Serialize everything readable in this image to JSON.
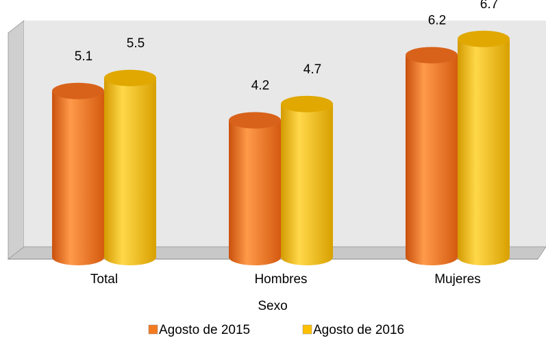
{
  "chart_data": {
    "type": "bar",
    "x_label": "Sexo",
    "categories": [
      "Total",
      "Hombres",
      "Mujeres"
    ],
    "series": [
      {
        "name": "Agosto de 2015",
        "color": "#f47b20",
        "values": [
          5.1,
          4.2,
          6.2
        ]
      },
      {
        "name": "Agosto de 2016",
        "color": "#ffc000",
        "values": [
          5.5,
          4.7,
          6.7
        ]
      }
    ],
    "ylim": [
      0,
      7
    ]
  }
}
